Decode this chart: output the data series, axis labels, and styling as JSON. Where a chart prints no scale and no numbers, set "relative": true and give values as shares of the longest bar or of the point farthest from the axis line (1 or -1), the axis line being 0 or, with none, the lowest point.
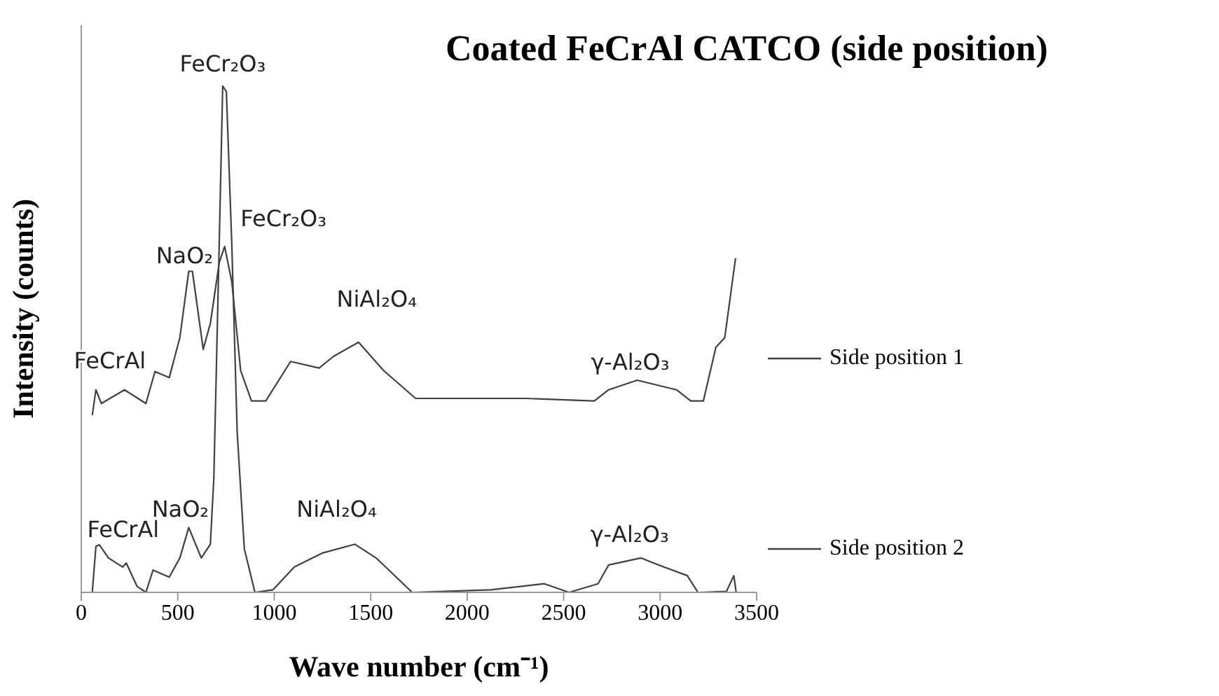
{
  "chart_data": {
    "type": "line",
    "title": "Coated FeCrAl CATCO (side position)",
    "xlabel": "Wave number (cm⁻¹)",
    "ylabel": "Intensity (counts)",
    "relative": true,
    "xlim": [
      0,
      3500
    ],
    "xticks": [
      0,
      500,
      1000,
      1500,
      2000,
      2500,
      3000,
      3500
    ],
    "legend": "right",
    "marker": "none",
    "line_style": "solid",
    "series": [
      {
        "name": "Side position 1",
        "color": "#404040",
        "x": [
          57,
          76,
          104,
          224,
          335,
          382,
          456,
          511,
          557,
          576,
          632,
          669,
          715,
          743,
          780,
          826,
          882,
          956,
          1085,
          1233,
          1307,
          1437,
          1567,
          1733,
          2270,
          2306,
          2659,
          2733,
          2881,
          3085,
          3159,
          3224,
          3289,
          3335,
          3391
        ],
        "values": [
          0.35,
          0.4,
          0.373,
          0.4,
          0.373,
          0.436,
          0.424,
          0.503,
          0.634,
          0.634,
          0.48,
          0.531,
          0.651,
          0.683,
          0.614,
          0.438,
          0.378,
          0.378,
          0.456,
          0.443,
          0.466,
          0.494,
          0.438,
          0.383,
          0.383,
          0.383,
          0.378,
          0.4,
          0.419,
          0.4,
          0.378,
          0.378,
          0.484,
          0.503,
          0.66
        ]
      },
      {
        "name": "Side position 2",
        "color": "#404040",
        "x": [
          57,
          76,
          94,
          141,
          215,
          233,
          289,
          335,
          372,
          456,
          511,
          557,
          622,
          669,
          687,
          715,
          733,
          752,
          780,
          808,
          845,
          900,
          993,
          1104,
          1252,
          1418,
          1528,
          1715,
          2122,
          2400,
          2528,
          2678,
          2733,
          2900,
          2993,
          3141,
          3196,
          3344,
          3382,
          3394
        ],
        "values": [
          0,
          0.091,
          0.094,
          0.068,
          0.05,
          0.058,
          0.012,
          0,
          0.044,
          0.03,
          0.068,
          0.128,
          0.068,
          0.095,
          0.225,
          0.689,
          1,
          0.989,
          0.689,
          0.317,
          0.086,
          0,
          0.005,
          0.05,
          0.078,
          0.095,
          0.068,
          0,
          0.005,
          0.017,
          0,
          0.017,
          0.054,
          0.068,
          0.054,
          0.033,
          0,
          0.002,
          0.033,
          0
        ]
      }
    ],
    "annotations": [
      {
        "text": "FeCr₂O₃",
        "x": 733,
        "y": 1
      },
      {
        "text": "FeCr₂O₃",
        "x": 743,
        "y": 0.683
      },
      {
        "text": "NaO₂",
        "x": 557,
        "y": 0.634
      },
      {
        "text": "FeCrAl",
        "x": 76,
        "y": 0.4
      },
      {
        "text": "NiAl₂O₄",
        "x": 1437,
        "y": 0.494
      },
      {
        "text": "γ-Al₂O₃",
        "x": 2881,
        "y": 0.419
      },
      {
        "text": "FeCrAl",
        "x": 94,
        "y": 0.094
      },
      {
        "text": "NaO₂",
        "x": 557,
        "y": 0.128
      },
      {
        "text": "NiAl₂O₄",
        "x": 1418,
        "y": 0.095
      },
      {
        "text": "γ-Al₂O₃",
        "x": 2900,
        "y": 0.068
      }
    ]
  }
}
